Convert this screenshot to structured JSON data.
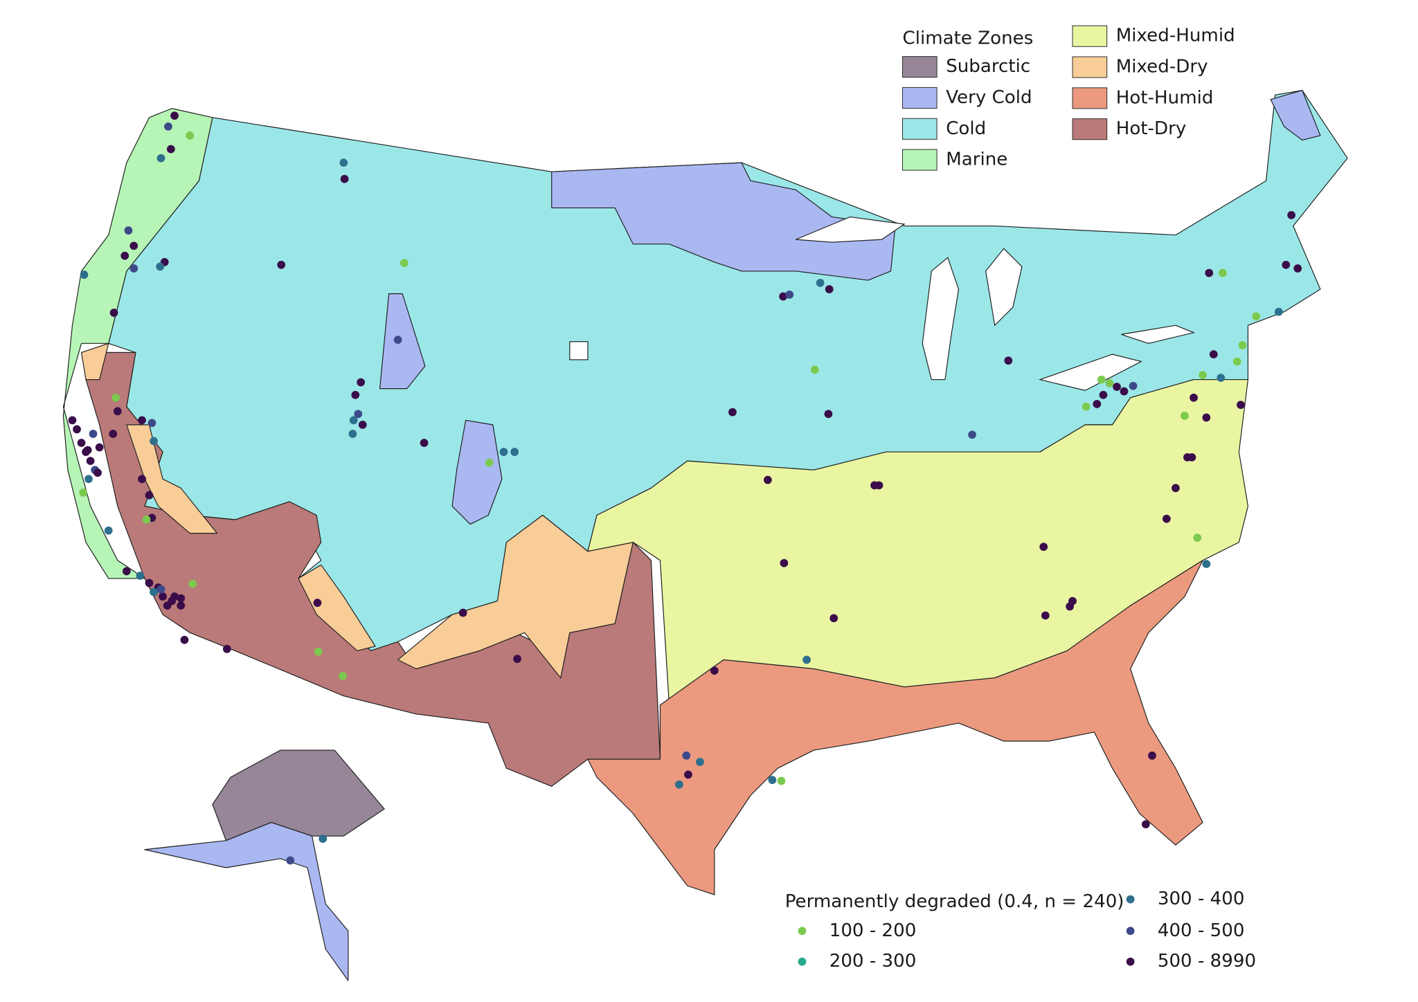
{
  "climate_legend": {
    "title": "Climate Zones",
    "zones": [
      {
        "name": "Subarctic",
        "color": "#968698"
      },
      {
        "name": "Very Cold",
        "color": "#aab8f2"
      },
      {
        "name": "Cold",
        "color": "#9be7e8"
      },
      {
        "name": "Marine",
        "color": "#b6f5b6"
      },
      {
        "name": "Mixed-Humid",
        "color": "#eaf5a2"
      },
      {
        "name": "Mixed-Dry",
        "color": "#f8cd98"
      },
      {
        "name": "Hot-Humid",
        "color": "#eb9a80"
      },
      {
        "name": "Hot-Dry",
        "color": "#ba7a79"
      }
    ]
  },
  "points_legend": {
    "title": "Permanently degraded (0.4, n = 240)",
    "bins": [
      {
        "label": "100 - 200",
        "color": "#7cc94f"
      },
      {
        "label": "200 - 300",
        "color": "#24a98a"
      },
      {
        "label": "300 - 400",
        "color": "#2e6f8e"
      },
      {
        "label": "400 - 500",
        "color": "#3d4a89"
      },
      {
        "label": "500 - 8990",
        "color": "#3a0d4a"
      }
    ]
  }
}
